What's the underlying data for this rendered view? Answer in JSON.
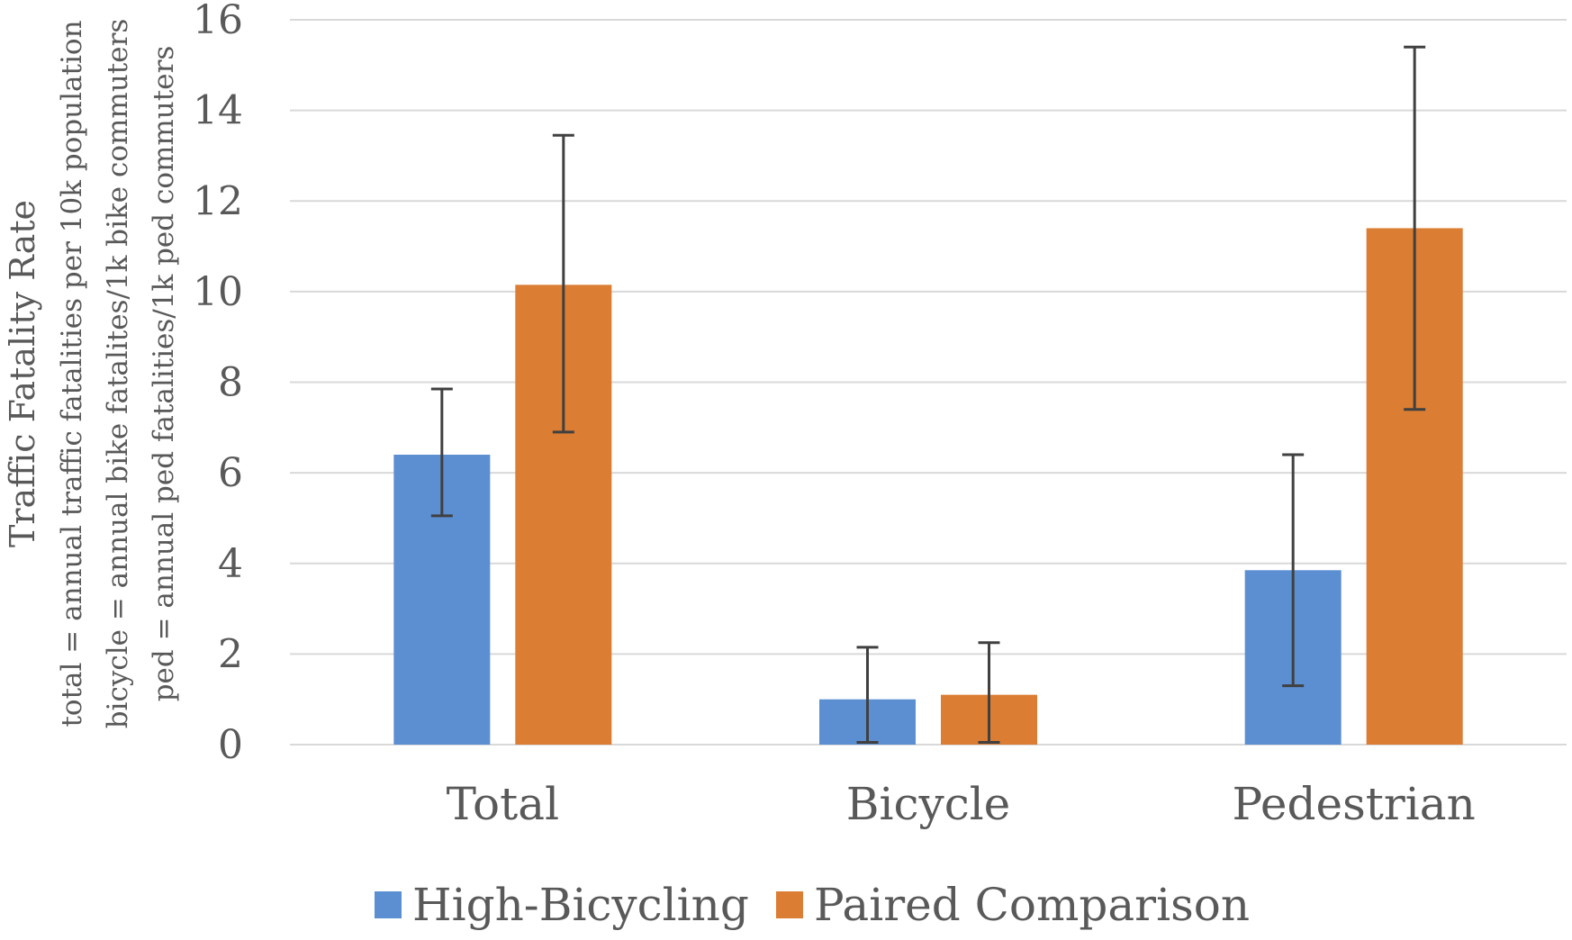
{
  "chart_data": {
    "type": "bar",
    "categories": [
      "Total",
      "Bicycle",
      "Pedestrian"
    ],
    "series": [
      {
        "name": "High-Bicycling",
        "color": "#5b8fd2",
        "values": [
          6.4,
          1.0,
          3.85
        ],
        "error_low": [
          5.05,
          0.05,
          1.3
        ],
        "error_high": [
          7.85,
          2.15,
          6.4
        ]
      },
      {
        "name": "Paired Comparison",
        "color": "#db7d33",
        "values": [
          10.15,
          1.1,
          11.4
        ],
        "error_low": [
          6.9,
          0.05,
          7.4
        ],
        "error_high": [
          13.45,
          2.25,
          15.4
        ]
      }
    ],
    "yticks": [
      0,
      2,
      4,
      6,
      8,
      10,
      12,
      14,
      16
    ],
    "ylim": [
      0,
      16
    ],
    "ylabel": {
      "title": "Traffic Fatality Rate",
      "lines": [
        "total = annual traffic fatalities per 10k population",
        "bicycle = annual bike fatalites/1k bike commuters",
        "ped = annual ped fatalities/1k ped commuters"
      ]
    },
    "xlabel": "",
    "grid": true,
    "legend_position": "bottom"
  }
}
